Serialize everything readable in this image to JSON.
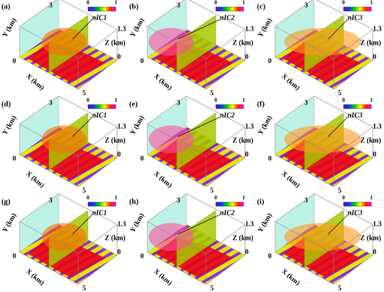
{
  "panels": [
    {
      "label": "(a)",
      "annotation": "nIC1"
    },
    {
      "label": "(b)",
      "annotation": "nIC2"
    },
    {
      "label": "(c)",
      "annotation": "nIC3"
    },
    {
      "label": "(d)",
      "annotation": "nIC1"
    },
    {
      "label": "(e)",
      "annotation": "nIC2"
    },
    {
      "label": "(f)",
      "annotation": "nIC3"
    },
    {
      "label": "(g)",
      "annotation": "nIC1"
    },
    {
      "label": "(h)",
      "annotation": "nIC2"
    },
    {
      "label": "(i)",
      "annotation": "nIC3"
    }
  ],
  "axes": {
    "x": "X (km)",
    "y": "Y (km)",
    "z": "Z (km)",
    "x_ticks": [
      "0",
      "5"
    ],
    "y_tick": "3",
    "z_ticks": [
      "1.3",
      "0"
    ],
    "colorbar": [
      "0",
      "1"
    ]
  }
}
